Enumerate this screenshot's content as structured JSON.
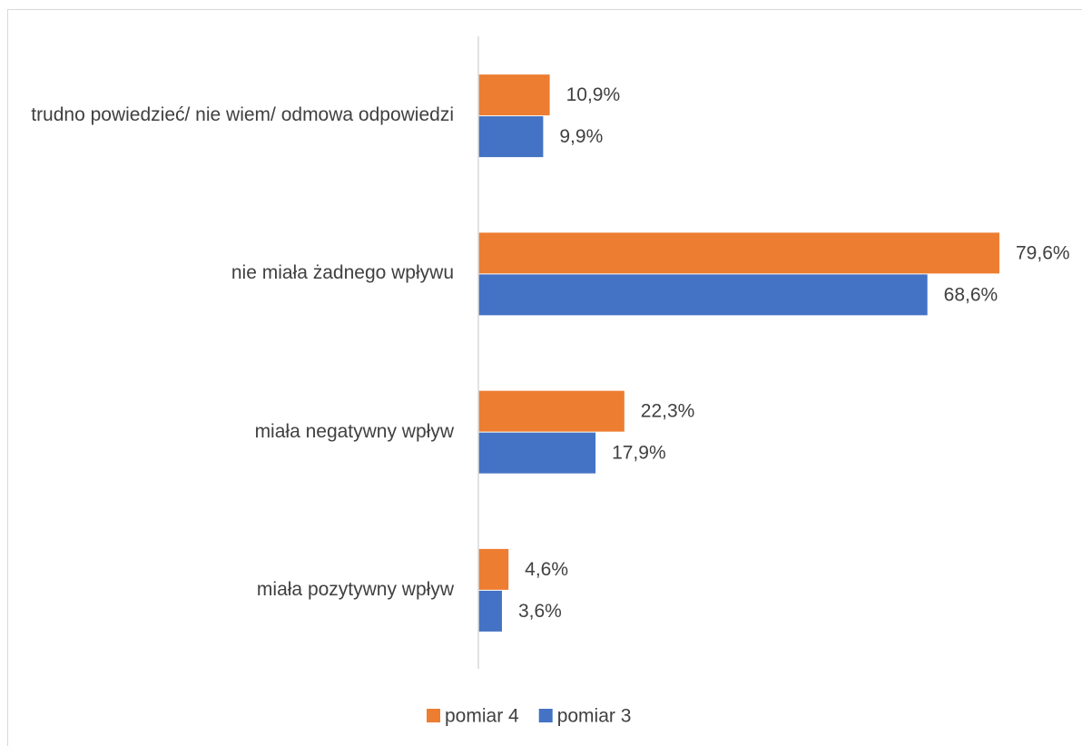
{
  "chart_data": {
    "type": "hbar",
    "categories": [
      "trudno powiedzieć/ nie wiem/ odmowa odpowiedzi",
      "nie miała żadnego wpływu",
      "miała negatywny wpływ",
      "miała pozytywny wpływ"
    ],
    "series": [
      {
        "name": "pomiar 4",
        "color": "#ed7d31",
        "values": [
          10.9,
          79.6,
          22.3,
          4.6
        ],
        "value_labels": [
          "10,9%",
          "79,6%",
          "22,3%",
          "4,6%"
        ]
      },
      {
        "name": "pomiar 3",
        "color": "#4472c4",
        "values": [
          9.9,
          68.6,
          17.9,
          3.6
        ],
        "value_labels": [
          "9,9%",
          "68,6%",
          "17,9%",
          "3,6%"
        ]
      }
    ],
    "xlim": [
      0,
      90
    ],
    "legend": "bottom"
  }
}
